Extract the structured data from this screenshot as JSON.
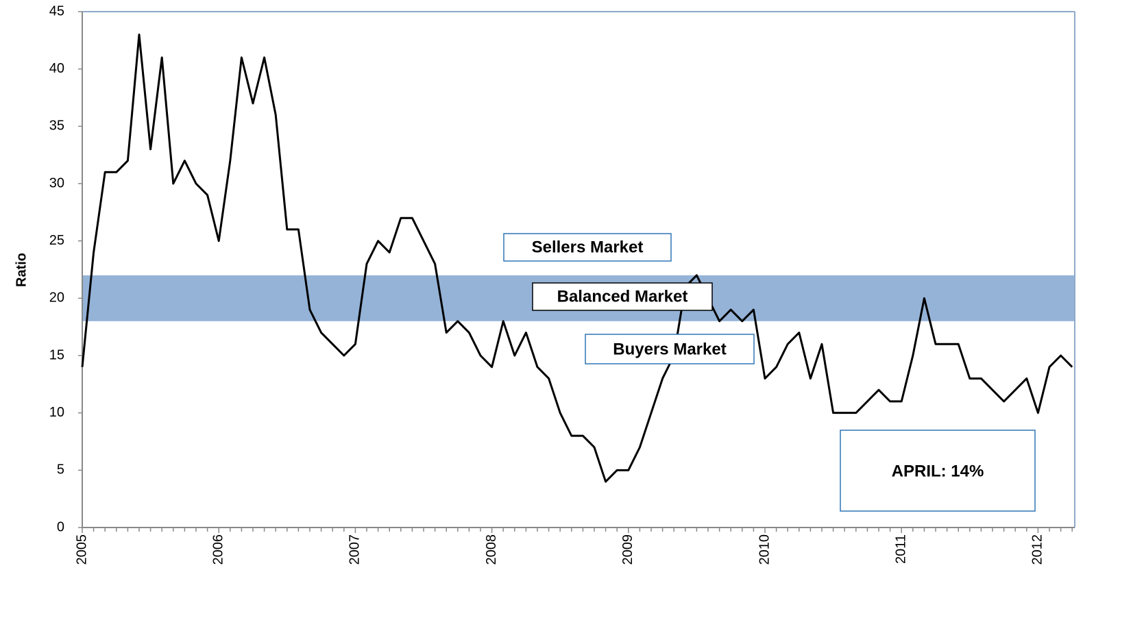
{
  "chart_data": {
    "type": "line",
    "y_label": "Ratio",
    "categories": [
      "2005",
      null,
      null,
      null,
      null,
      null,
      null,
      null,
      null,
      null,
      null,
      null,
      "2006",
      null,
      null,
      null,
      null,
      null,
      null,
      null,
      null,
      null,
      null,
      null,
      "2007",
      null,
      null,
      null,
      null,
      null,
      null,
      null,
      null,
      null,
      null,
      null,
      "2008",
      null,
      null,
      null,
      null,
      null,
      null,
      null,
      null,
      null,
      null,
      null,
      "2009",
      null,
      null,
      null,
      null,
      null,
      null,
      null,
      null,
      null,
      null,
      null,
      "2010",
      null,
      null,
      null,
      null,
      null,
      null,
      null,
      null,
      null,
      null,
      null,
      "2011",
      null,
      null,
      null,
      null,
      null,
      null,
      null,
      null,
      null,
      null,
      null,
      "2012",
      null,
      null,
      null
    ],
    "values": [
      14,
      24,
      31,
      31,
      32,
      43,
      33,
      41,
      30,
      32,
      30,
      29,
      25,
      32,
      41,
      37,
      41,
      36,
      26,
      26,
      19,
      17,
      16,
      15,
      16,
      23,
      25,
      24,
      27,
      27,
      25,
      23,
      17,
      18,
      17,
      15,
      14,
      18,
      15,
      17,
      14,
      13,
      10,
      8,
      8,
      7,
      4,
      5,
      5,
      7,
      10,
      13,
      15,
      21,
      22,
      20,
      18,
      19,
      18,
      19,
      13,
      14,
      16,
      17,
      13,
      16,
      10,
      10,
      10,
      11,
      12,
      11,
      11,
      15,
      20,
      16,
      16,
      16,
      13,
      13,
      12,
      11,
      12,
      13,
      10,
      14,
      15,
      14
    ],
    "color": "#000000",
    "ylim": [
      0,
      45
    ],
    "yticks": [
      0,
      5,
      10,
      15,
      20,
      25,
      30,
      35,
      40,
      45
    ],
    "grid": false,
    "band": {
      "range": [
        18,
        22
      ],
      "color": "#95b3d7"
    },
    "annotations": {
      "sellers": "Sellers Market",
      "balanced": "Balanced Market",
      "buyers": "Buyers Market",
      "latest": "APRIL: 14%"
    }
  }
}
